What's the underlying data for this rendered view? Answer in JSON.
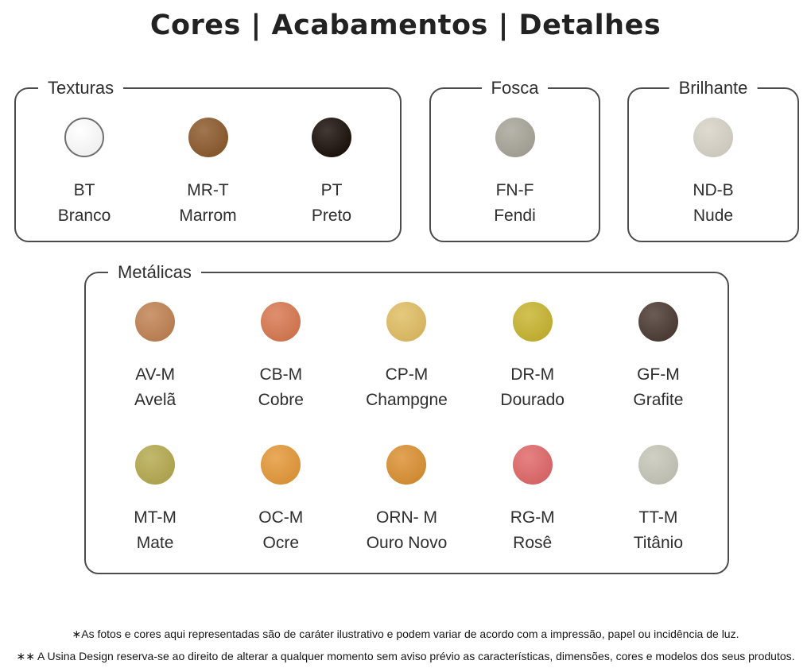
{
  "title": "Cores | Acabamentos | Detalhes",
  "groups": [
    {
      "label": "Texturas",
      "swatches": [
        {
          "code": "BT",
          "name": "Branco",
          "color": "#ffffff"
        },
        {
          "code": "MR-T",
          "name": "Marrom",
          "color": "#8e5c2f"
        },
        {
          "code": "PT",
          "name": "Preto",
          "color": "#1e130d"
        }
      ]
    },
    {
      "label": "Fosca",
      "swatches": [
        {
          "code": "FN-F",
          "name": "Fendi",
          "color": "#a9a79b"
        }
      ]
    },
    {
      "label": "Brilhante",
      "swatches": [
        {
          "code": "ND-B",
          "name": "Nude",
          "color": "#d8d4c8"
        }
      ]
    },
    {
      "label": "Metálicas",
      "swatches": [
        {
          "code": "AV-M",
          "name": "Avelã",
          "color": "#c28455"
        },
        {
          "code": "CB-M",
          "name": "Cobre",
          "color": "#d97a53"
        },
        {
          "code": "CP-M",
          "name": "Champgne",
          "color": "#e2bf66"
        },
        {
          "code": "DR-M",
          "name": "Dourado",
          "color": "#c9b633"
        },
        {
          "code": "GF-M",
          "name": "Grafite",
          "color": "#4e3d36"
        },
        {
          "code": "MT-M",
          "name": "Mate",
          "color": "#b7ab52"
        },
        {
          "code": "OC-M",
          "name": "Ocre",
          "color": "#e59a3c"
        },
        {
          "code": "ORN- M",
          "name": "Ouro Novo",
          "color": "#dc9235"
        },
        {
          "code": "RG-M",
          "name": "Rosê",
          "color": "#e16a6b"
        },
        {
          "code": "TT-M",
          "name": "Titânio",
          "color": "#c8c7ba"
        }
      ]
    }
  ],
  "footnotes": [
    "∗As fotos e cores aqui representadas são de caráter ilustrativo e podem variar de acordo com a impressão, papel ou incidência de luz.",
    "∗∗ A Usina Design reserva-se ao direito de alterar a qualquer momento sem  aviso prévio  as características, dimensões, cores e modelos dos seus produtos."
  ]
}
